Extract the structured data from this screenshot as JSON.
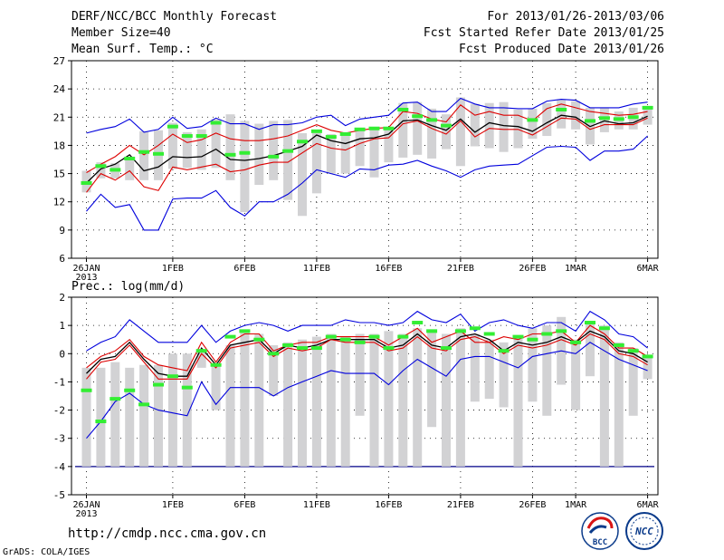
{
  "header": {
    "title": "DERF/NCC/BCC Monthly Forecast",
    "member_size": "Member Size=40",
    "variable": "Mean Surf. Temp.: °C",
    "period": "For 2013/01/26-2013/03/06",
    "fcst_started": "Fcst Started Refer Date 2013/01/25",
    "fcst_produced": "Fcst Produced Date 2013/01/26"
  },
  "footer": {
    "url": "http://cmdp.ncc.cma.gov.cn",
    "credit": "GrADS: COLA/IGES",
    "logo_bcc": "BCC",
    "logo_ncc": "NCC"
  },
  "colors": {
    "mean": "#000000",
    "spread": "#dd0000",
    "extreme": "#0000dd",
    "bar": "#d2d2d4",
    "obs": "#33ee33",
    "floor": "#000088"
  },
  "chart_data": [
    {
      "type": "line",
      "title": "Mean Surf. Temp.: °C",
      "x_tick_labels": [
        "26JAN",
        "1FEB",
        "6FEB",
        "11FEB",
        "16FEB",
        "21FEB",
        "26FEB",
        "1MAR",
        "6MAR"
      ],
      "x_tick_days": [
        0,
        6,
        11,
        16,
        21,
        26,
        31,
        34,
        39
      ],
      "year_label": "2013",
      "ylim": [
        6,
        27
      ],
      "y_ticks": [
        6,
        9,
        12,
        15,
        18,
        21,
        24,
        27
      ],
      "grid": true,
      "series": [
        {
          "name": "max",
          "values": [
            19.3,
            19.7,
            20.0,
            20.8,
            19.4,
            19.7,
            21.0,
            19.8,
            20.0,
            20.9,
            20.3,
            20.3,
            19.7,
            20.2,
            20.2,
            20.4,
            21.0,
            21.2,
            20.1,
            20.8,
            21.0,
            21.2,
            22.5,
            22.6,
            21.6,
            21.6,
            23.0,
            22.4,
            22.0,
            22.0,
            21.9,
            21.9,
            22.7,
            22.9,
            22.8,
            22.0,
            22.0,
            22.0,
            22.4,
            22.6
          ]
        },
        {
          "name": "upper",
          "values": [
            15.1,
            16.0,
            16.8,
            18.0,
            17.0,
            18.0,
            19.2,
            18.3,
            18.6,
            19.3,
            18.7,
            18.5,
            18.5,
            18.7,
            19.0,
            19.6,
            20.2,
            19.6,
            19.3,
            19.6,
            19.8,
            19.9,
            21.6,
            21.4,
            20.8,
            20.5,
            22.3,
            21.2,
            21.6,
            21.2,
            21.2,
            20.6,
            21.9,
            22.4,
            22.0,
            21.6,
            21.4,
            21.2,
            21.3,
            21.6
          ]
        },
        {
          "name": "mean",
          "values": [
            14.0,
            15.5,
            16.0,
            17.0,
            15.3,
            15.7,
            16.8,
            16.7,
            16.8,
            17.6,
            16.5,
            16.4,
            16.6,
            16.9,
            17.4,
            17.9,
            19.1,
            18.5,
            18.2,
            18.7,
            18.8,
            19.2,
            20.6,
            20.7,
            20.1,
            19.6,
            20.8,
            19.4,
            20.4,
            20.1,
            20.0,
            19.5,
            20.4,
            21.2,
            21.0,
            20.0,
            20.6,
            20.3,
            20.4,
            21.1
          ]
        },
        {
          "name": "lower",
          "values": [
            13.0,
            15.0,
            14.3,
            15.3,
            13.6,
            13.2,
            15.7,
            15.4,
            15.7,
            16.0,
            15.2,
            15.4,
            15.9,
            16.2,
            16.2,
            17.2,
            18.2,
            17.7,
            17.5,
            18.2,
            18.7,
            18.8,
            20.3,
            20.6,
            19.8,
            19.2,
            20.6,
            18.9,
            19.8,
            19.7,
            19.7,
            19.1,
            20.0,
            20.9,
            20.8,
            19.7,
            20.2,
            20.2,
            20.2,
            20.9
          ]
        },
        {
          "name": "min",
          "values": [
            11.0,
            12.8,
            11.4,
            11.7,
            9.0,
            9.0,
            12.3,
            12.4,
            12.4,
            13.2,
            11.4,
            10.5,
            12.0,
            12.0,
            12.8,
            14.0,
            15.4,
            15.0,
            14.6,
            15.5,
            15.4,
            15.9,
            16.0,
            16.4,
            15.8,
            15.3,
            14.6,
            15.4,
            15.8,
            15.9,
            16.0,
            16.9,
            17.8,
            17.9,
            17.8,
            16.4,
            17.4,
            17.4,
            17.6,
            19.0
          ]
        },
        {
          "name": "observed",
          "values": [
            14.0,
            15.8,
            15.4,
            16.6,
            17.3,
            17.1,
            20.0,
            19.0,
            19.0,
            20.4,
            17.0,
            17.2,
            null,
            16.8,
            17.4,
            18.4,
            19.5,
            18.9,
            19.2,
            19.7,
            19.8,
            19.8,
            21.8,
            21.1,
            20.7,
            20.1,
            null,
            null,
            null,
            null,
            null,
            20.7,
            null,
            21.8,
            null,
            20.6,
            20.9,
            20.8,
            21.0,
            22.0
          ]
        }
      ],
      "bars": {
        "low": [
          13.0,
          14.5,
          14.5,
          14.3,
          14.3,
          14.3,
          15.5,
          15.6,
          15.4,
          15.6,
          14.3,
          10.9,
          13.8,
          14.3,
          12.2,
          10.5,
          12.9,
          15.0,
          15.0,
          15.8,
          14.6,
          16.2,
          16.7,
          17.0,
          16.6,
          17.6,
          15.8,
          17.9,
          17.7,
          17.3,
          17.7,
          18.7,
          19.0,
          19.8,
          19.7,
          18.1,
          19.4,
          19.7,
          19.7,
          20.2
        ],
        "high": [
          15.3,
          16.2,
          16.1,
          16.8,
          19.5,
          19.6,
          20.4,
          19.4,
          19.7,
          20.8,
          21.3,
          20.6,
          20.3,
          20.6,
          20.7,
          19.3,
          19.3,
          19.2,
          19.4,
          19.7,
          19.9,
          19.8,
          22.5,
          22.6,
          21.9,
          21.3,
          23.1,
          22.4,
          22.5,
          22.6,
          21.8,
          21.9,
          22.5,
          22.9,
          22.7,
          22.0,
          22.0,
          21.6,
          22.0,
          22.2
        ]
      }
    },
    {
      "type": "line",
      "title": "Prec.: log(mm/d)",
      "x_tick_labels": [
        "26JAN",
        "1FEB",
        "6FEB",
        "11FEB",
        "16FEB",
        "21FEB",
        "26FEB",
        "1MAR",
        "6MAR"
      ],
      "x_tick_days": [
        0,
        6,
        11,
        16,
        21,
        26,
        31,
        34,
        39
      ],
      "year_label": "2013",
      "ylim": [
        -5,
        2
      ],
      "y_ticks": [
        -5,
        -4,
        -3,
        -2,
        -1,
        0,
        1,
        2
      ],
      "grid": true,
      "floor_value": -4,
      "series": [
        {
          "name": "max",
          "values": [
            0.1,
            0.4,
            0.6,
            1.2,
            0.8,
            0.4,
            0.4,
            0.4,
            1.0,
            0.4,
            0.8,
            1.0,
            1.1,
            1.0,
            0.8,
            1.0,
            1.0,
            1.0,
            1.2,
            1.1,
            1.1,
            1.0,
            1.1,
            1.5,
            1.2,
            1.1,
            1.4,
            0.8,
            1.1,
            1.2,
            1.0,
            0.9,
            1.1,
            1.1,
            0.8,
            1.5,
            1.2,
            0.7,
            0.6,
            0.2
          ]
        },
        {
          "name": "upper",
          "values": [
            -0.5,
            -0.1,
            0.1,
            0.5,
            -0.1,
            -0.4,
            -0.5,
            -0.6,
            0.4,
            -0.3,
            0.4,
            0.7,
            0.7,
            0.1,
            0.3,
            0.4,
            0.4,
            0.6,
            0.6,
            0.6,
            0.6,
            0.3,
            0.6,
            0.9,
            0.4,
            0.6,
            0.8,
            0.4,
            0.4,
            0.6,
            0.5,
            0.7,
            0.7,
            0.8,
            0.4,
            1.0,
            0.7,
            0.2,
            0.2,
            -0.1
          ]
        },
        {
          "name": "mean",
          "values": [
            -0.7,
            -0.2,
            -0.1,
            0.4,
            -0.2,
            -0.7,
            -0.8,
            -0.8,
            0.2,
            -0.4,
            0.3,
            0.4,
            0.5,
            0.0,
            0.3,
            0.2,
            0.3,
            0.5,
            0.5,
            0.5,
            0.5,
            0.2,
            0.3,
            0.7,
            0.3,
            0.2,
            0.6,
            0.7,
            0.5,
            0.1,
            0.4,
            0.3,
            0.4,
            0.6,
            0.4,
            0.8,
            0.6,
            0.1,
            0.0,
            -0.3
          ]
        },
        {
          "name": "lower",
          "values": [
            -0.9,
            -0.3,
            -0.2,
            0.3,
            -0.3,
            -0.9,
            -0.9,
            -0.9,
            0.0,
            -0.5,
            0.2,
            0.3,
            0.4,
            -0.1,
            0.2,
            0.1,
            0.2,
            0.5,
            0.4,
            0.4,
            0.4,
            0.1,
            0.2,
            0.6,
            0.2,
            0.1,
            0.5,
            0.6,
            0.4,
            0.0,
            0.3,
            0.2,
            0.3,
            0.5,
            0.3,
            0.7,
            0.5,
            0.0,
            -0.1,
            -0.4
          ]
        },
        {
          "name": "min",
          "values": [
            -3.0,
            -2.4,
            -1.7,
            -1.4,
            -1.8,
            -2.0,
            -2.1,
            -2.2,
            -1.0,
            -1.8,
            -1.2,
            -1.2,
            -1.2,
            -1.5,
            -1.2,
            -1.0,
            -0.8,
            -0.6,
            -0.7,
            -0.7,
            -0.7,
            -1.1,
            -0.6,
            -0.2,
            -0.5,
            -0.8,
            -0.2,
            -0.1,
            -0.1,
            -0.3,
            -0.5,
            -0.1,
            0.0,
            0.1,
            0.0,
            0.4,
            0.1,
            -0.2,
            -0.4,
            -0.6
          ]
        },
        {
          "name": "observed",
          "values": [
            -1.3,
            -2.4,
            -1.6,
            -1.3,
            -1.8,
            -1.1,
            -0.8,
            -1.2,
            0.1,
            -0.4,
            0.6,
            0.8,
            0.5,
            0.0,
            0.3,
            0.2,
            0.2,
            0.6,
            0.5,
            0.4,
            0.6,
            0.2,
            0.6,
            1.1,
            0.8,
            0.2,
            0.8,
            0.9,
            0.7,
            0.1,
            0.6,
            0.5,
            0.7,
            0.8,
            0.4,
            1.1,
            0.9,
            0.3,
            0.1,
            -0.1
          ]
        }
      ],
      "bars": {
        "low": [
          -4,
          -4,
          -4,
          -4,
          -4,
          -4,
          -4,
          -4,
          -0.5,
          -2.0,
          -4,
          -4,
          -4,
          -1.5,
          -4,
          -4,
          -4,
          -4,
          -4,
          -2.2,
          -4,
          -4,
          -4,
          -4,
          -2.6,
          -4,
          -4,
          -1.7,
          -1.6,
          -1.9,
          -4,
          -1.7,
          -2.2,
          -1.1,
          -2.0,
          -0.8,
          -4,
          -4,
          -2.2,
          -0.9
        ],
        "high": [
          -0.5,
          -0.5,
          -0.3,
          -0.5,
          -0.4,
          -0.4,
          0.0,
          0.0,
          0.1,
          -0.4,
          0.3,
          0.8,
          0.7,
          0.3,
          0.4,
          0.5,
          0.6,
          0.7,
          0.6,
          0.7,
          0.7,
          0.8,
          0.7,
          0.9,
          0.8,
          0.7,
          0.9,
          0.7,
          0.5,
          0.4,
          0.6,
          0.9,
          1.0,
          1.3,
          0.5,
          1.1,
          1.0,
          0.4,
          0.2,
          -0.1
        ]
      }
    }
  ]
}
